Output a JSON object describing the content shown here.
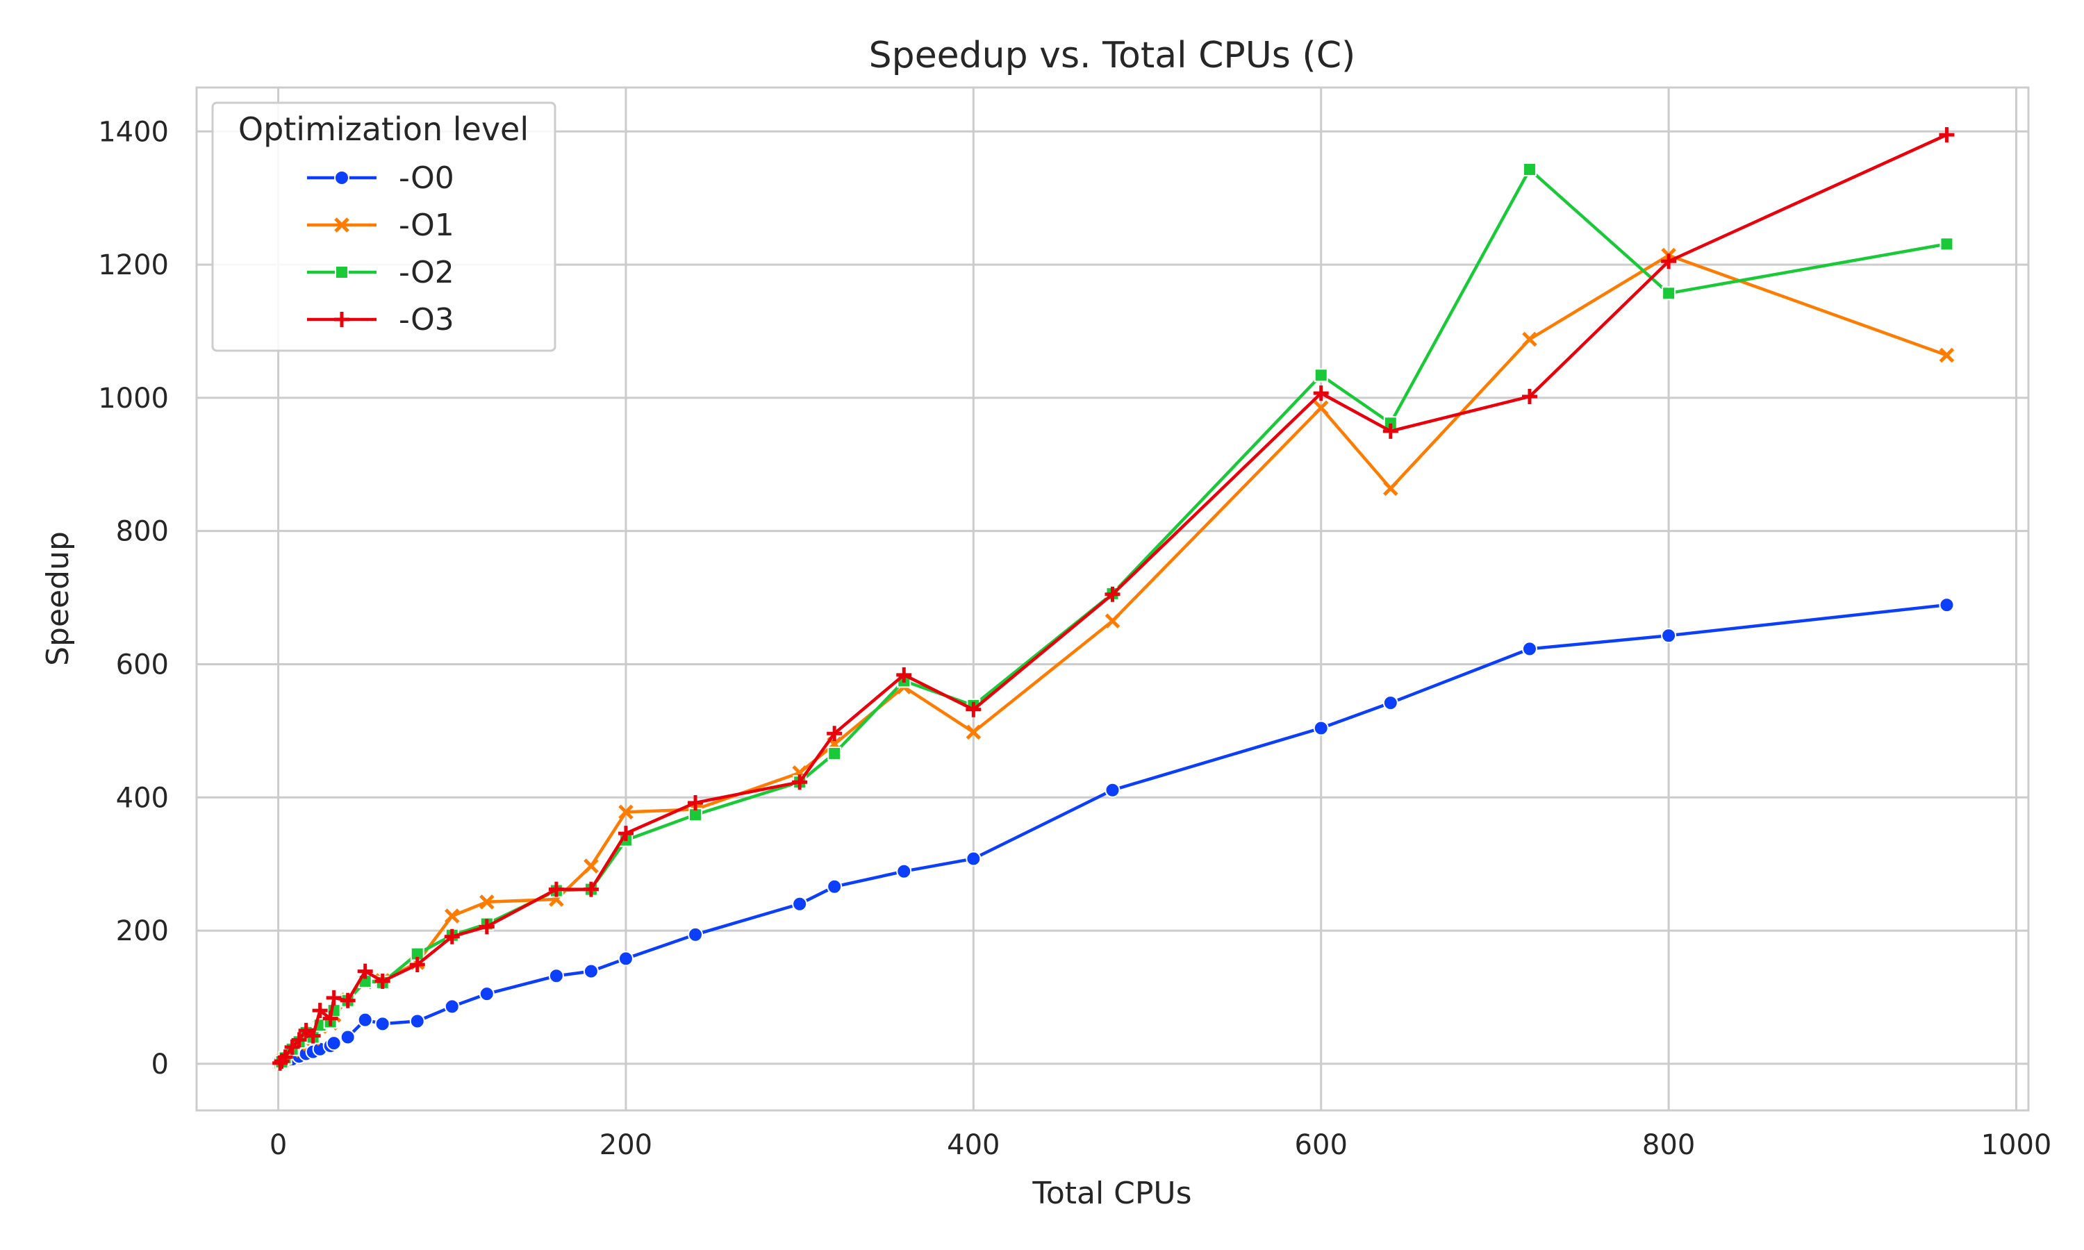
{
  "chart_data": {
    "type": "line",
    "title": "Speedup vs. Total CPUs (C)",
    "xlabel": "Total CPUs",
    "ylabel": "Speedup",
    "xlim": [
      -47,
      1007
    ],
    "ylim": [
      -70,
      1466
    ],
    "xticks": [
      0,
      200,
      400,
      600,
      800,
      1000
    ],
    "yticks": [
      0,
      200,
      400,
      600,
      800,
      1000,
      1200,
      1400
    ],
    "grid": true,
    "legend": {
      "title": "Optimization level",
      "position": "top-left"
    },
    "series": [
      {
        "name": "-O0",
        "color": "#0c3ffb",
        "marker": "circle",
        "x": [
          1,
          2,
          4,
          8,
          12,
          16,
          20,
          24,
          30,
          32,
          40,
          50,
          60,
          80,
          100,
          120,
          160,
          180,
          200,
          240,
          300,
          320,
          360,
          400,
          480,
          600,
          640,
          720,
          800,
          960
        ],
        "y": [
          1,
          2,
          4,
          7,
          11,
          15,
          18,
          22,
          27,
          31,
          40,
          66,
          60,
          64,
          86,
          105,
          132,
          139,
          158,
          194,
          240,
          266,
          289,
          308,
          411,
          504,
          542,
          623,
          643,
          689
        ]
      },
      {
        "name": "-O1",
        "color": "#ff7c00",
        "marker": "x",
        "x": [
          1,
          2,
          4,
          8,
          12,
          16,
          20,
          24,
          30,
          32,
          40,
          50,
          60,
          80,
          100,
          120,
          160,
          180,
          200,
          240,
          300,
          320,
          360,
          400,
          480,
          600,
          640,
          720,
          800,
          960
        ],
        "y": [
          1,
          3,
          8,
          20,
          30,
          45,
          38,
          56,
          61,
          73,
          96,
          123,
          125,
          152,
          222,
          243,
          247,
          297,
          378,
          382,
          437,
          480,
          566,
          498,
          665,
          985,
          864,
          1088,
          1214,
          1064
        ]
      },
      {
        "name": "-O2",
        "color": "#1ac938",
        "marker": "square",
        "x": [
          1,
          2,
          4,
          8,
          12,
          16,
          20,
          24,
          30,
          32,
          40,
          50,
          60,
          80,
          100,
          120,
          160,
          180,
          200,
          240,
          300,
          320,
          360,
          400,
          480,
          600,
          640,
          720,
          800,
          960
        ],
        "y": [
          1,
          3,
          9,
          22,
          33,
          47,
          40,
          58,
          63,
          80,
          95,
          124,
          122,
          165,
          193,
          210,
          260,
          262,
          336,
          374,
          423,
          466,
          575,
          538,
          706,
          1034,
          962,
          1343,
          1157,
          1231
        ]
      },
      {
        "name": "-O3",
        "color": "#e8000b",
        "marker": "plus",
        "x": [
          1,
          2,
          4,
          8,
          12,
          16,
          20,
          24,
          30,
          32,
          40,
          50,
          60,
          80,
          100,
          120,
          160,
          180,
          200,
          240,
          300,
          320,
          360,
          400,
          480,
          600,
          640,
          720,
          800,
          960
        ],
        "y": [
          1,
          4,
          10,
          25,
          36,
          50,
          42,
          80,
          68,
          99,
          95,
          139,
          124,
          149,
          191,
          206,
          262,
          262,
          346,
          392,
          423,
          496,
          584,
          532,
          705,
          1007,
          950,
          1002,
          1205,
          1395
        ]
      }
    ]
  }
}
